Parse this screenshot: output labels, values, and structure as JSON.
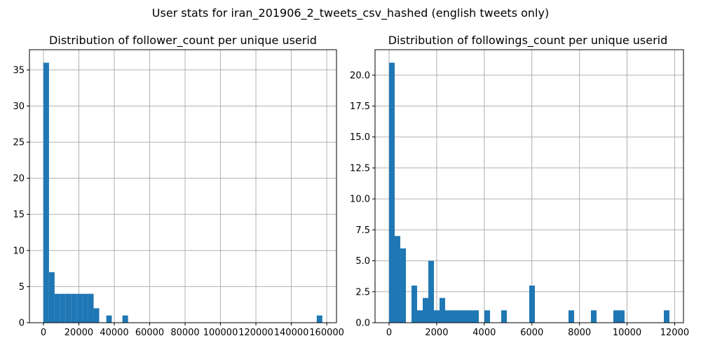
{
  "figure": {
    "suptitle": "User stats for iran_201906_2_tweets_csv_hashed (english tweets only)"
  },
  "chart_data": [
    {
      "type": "bar",
      "title": "Distribution of follower_count per unique userid",
      "xlabel": "",
      "ylabel": "",
      "xlim": [
        -7900,
        165500
      ],
      "ylim": [
        0,
        37.8
      ],
      "xticks": [
        0,
        20000,
        40000,
        60000,
        80000,
        100000,
        120000,
        140000,
        160000
      ],
      "xtick_labels": [
        "0",
        "20000",
        "40000",
        "60000",
        "80000",
        "100000",
        "120000",
        "140000",
        "160000"
      ],
      "yticks": [
        0,
        5,
        10,
        15,
        20,
        25,
        30,
        35
      ],
      "ytick_labels": [
        "0",
        "5",
        "10",
        "15",
        "20",
        "25",
        "30",
        "35"
      ],
      "grid": true,
      "color": "#1f77b4",
      "bin_range": [
        0,
        157500
      ],
      "bins": 50,
      "counts": [
        36,
        7,
        4,
        4,
        4,
        4,
        4,
        4,
        4,
        2,
        0,
        0,
        0,
        0,
        0,
        0,
        0,
        0,
        0,
        0,
        0,
        0,
        0,
        0,
        0,
        0,
        0,
        0,
        0,
        0,
        0,
        0,
        0,
        0,
        0,
        0,
        0,
        0,
        0,
        0,
        0,
        0,
        0,
        0,
        0,
        0,
        0,
        0,
        0,
        1
      ],
      "extra_bars": [
        {
          "x": [
            35500,
            38600
          ],
          "value": 1
        },
        {
          "x": [
            44600,
            47800
          ],
          "value": 1
        }
      ]
    },
    {
      "type": "bar",
      "title": "Distribution of followings_count per unique userid",
      "xlabel": "",
      "ylabel": "",
      "xlim": [
        -590,
        12370
      ],
      "ylim": [
        0,
        22.05
      ],
      "xticks": [
        0,
        2000,
        4000,
        6000,
        8000,
        10000,
        12000
      ],
      "xtick_labels": [
        "0",
        "2000",
        "4000",
        "6000",
        "8000",
        "10000",
        "12000"
      ],
      "yticks": [
        0,
        2.5,
        5,
        7.5,
        10,
        12.5,
        15,
        17.5,
        20
      ],
      "ytick_labels": [
        "0.0",
        "2.5",
        "5.0",
        "7.5",
        "10.0",
        "12.5",
        "15.0",
        "17.5",
        "20.0"
      ],
      "grid": true,
      "color": "#1f77b4",
      "bin_range": [
        0,
        11780
      ],
      "bins": 50,
      "counts": [
        21,
        7,
        6,
        0,
        3,
        1,
        2,
        5,
        1,
        2,
        1,
        1,
        1,
        1,
        1,
        1,
        0,
        1,
        0,
        0,
        1,
        0,
        0,
        0,
        0,
        3,
        0,
        0,
        0,
        0,
        0,
        0,
        1,
        0,
        0,
        0,
        1,
        0,
        0,
        0,
        1,
        1,
        0,
        0,
        0,
        0,
        0,
        0,
        0,
        1
      ]
    }
  ]
}
